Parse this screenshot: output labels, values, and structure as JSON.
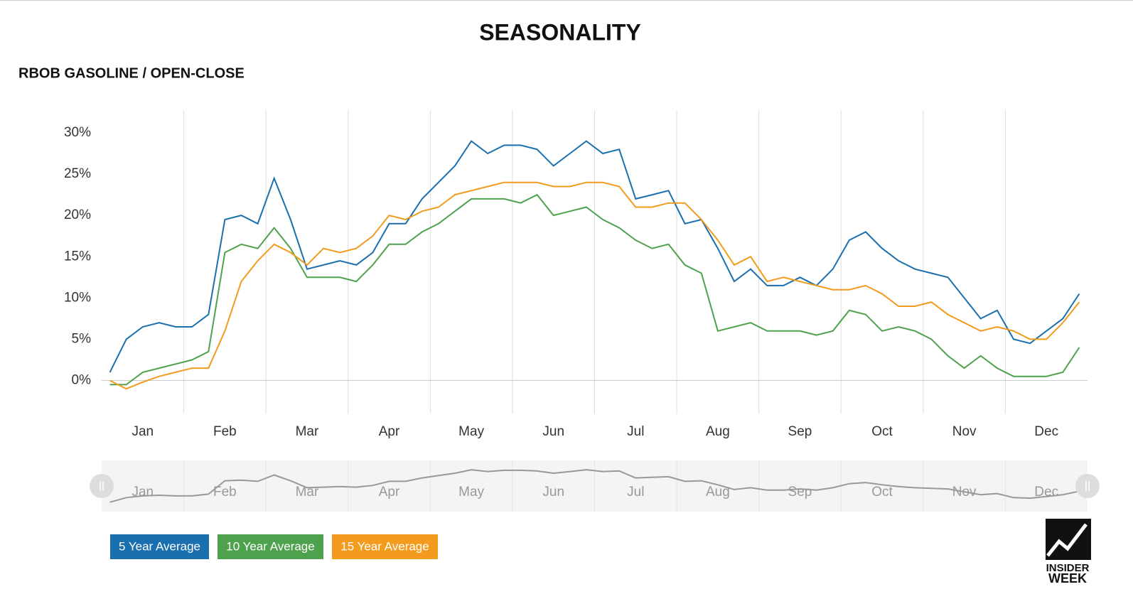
{
  "chart_data": {
    "type": "line",
    "title": "SEASONALITY",
    "subtitle": "RBOB GASOLINE / OPEN-CLOSE",
    "categories": [
      null,
      null,
      "Jan",
      null,
      null,
      null,
      null,
      "Feb",
      null,
      null,
      null,
      null,
      "Mar",
      null,
      null,
      null,
      null,
      "Apr",
      null,
      null,
      null,
      null,
      "May",
      null,
      null,
      null,
      null,
      "Jun",
      null,
      null,
      null,
      null,
      "Jul",
      null,
      null,
      null,
      null,
      "Aug",
      null,
      null,
      null,
      null,
      "Sep",
      null,
      null,
      null,
      null,
      "Oct",
      null,
      null,
      null,
      null,
      "Nov",
      null,
      null,
      null,
      null,
      "Dec",
      null,
      null
    ],
    "series": [
      {
        "name": "5 Year Average",
        "color": "#1a6faf",
        "values": [
          1,
          5,
          6.5,
          7,
          6.5,
          6.5,
          8,
          19.5,
          20,
          19,
          24.5,
          19.5,
          13.5,
          14,
          14.5,
          14,
          15.5,
          19,
          19,
          22,
          24,
          26,
          29,
          27.5,
          28.5,
          28.5,
          28,
          26,
          27.5,
          29,
          27.5,
          28,
          22,
          22.5,
          23,
          19,
          19.5,
          16,
          12,
          13.5,
          11.5,
          11.5,
          12.5,
          11.5,
          13.5,
          17,
          18,
          16,
          14.5,
          13.5,
          13,
          12.5,
          10,
          7.5,
          8.5,
          5,
          4.5,
          6,
          7.5,
          10.5
        ]
      },
      {
        "name": "10 Year Average",
        "color": "#4ea24e",
        "values": [
          -0.5,
          -0.5,
          1,
          1.5,
          2,
          2.5,
          3.5,
          15.5,
          16.5,
          16,
          18.5,
          16,
          12.5,
          12.5,
          12.5,
          12,
          14,
          16.5,
          16.5,
          18,
          19,
          20.5,
          22,
          22,
          22,
          21.5,
          22.5,
          20,
          20.5,
          21,
          19.5,
          18.5,
          17,
          16,
          16.5,
          14,
          13,
          6,
          6.5,
          7,
          6,
          6,
          6,
          5.5,
          6,
          8.5,
          8,
          6,
          6.5,
          6,
          5,
          3,
          1.5,
          3,
          1.5,
          0.5,
          0.5,
          0.5,
          1,
          4
        ]
      },
      {
        "name": "15 Year Average",
        "color": "#f29b1d",
        "values": [
          0,
          -1,
          -0.2,
          0.5,
          1,
          1.5,
          1.5,
          6,
          12,
          14.5,
          16.5,
          15.5,
          14,
          16,
          15.5,
          16,
          17.5,
          20,
          19.5,
          20.5,
          21,
          22.5,
          23,
          23.5,
          24,
          24,
          24,
          23.5,
          23.5,
          24,
          24,
          23.5,
          21,
          21,
          21.5,
          21.5,
          19.5,
          17,
          14,
          15,
          12,
          12.5,
          12,
          11.5,
          11,
          11,
          11.5,
          10.5,
          9,
          9,
          9.5,
          8,
          7,
          6,
          6.5,
          6,
          5,
          5,
          7,
          9.5
        ]
      }
    ],
    "ylim": [
      -4,
      32.75
    ],
    "yticks": [
      {
        "value": 0,
        "label": "0%"
      },
      {
        "value": 5,
        "label": "5%"
      },
      {
        "value": 10,
        "label": "10%"
      },
      {
        "value": 15,
        "label": "15%"
      },
      {
        "value": 20,
        "label": "20%"
      },
      {
        "value": 25,
        "label": "25%"
      },
      {
        "value": 30,
        "label": "30%"
      }
    ],
    "grid": true,
    "brand": [
      "INSIDER",
      "WEEK"
    ]
  }
}
